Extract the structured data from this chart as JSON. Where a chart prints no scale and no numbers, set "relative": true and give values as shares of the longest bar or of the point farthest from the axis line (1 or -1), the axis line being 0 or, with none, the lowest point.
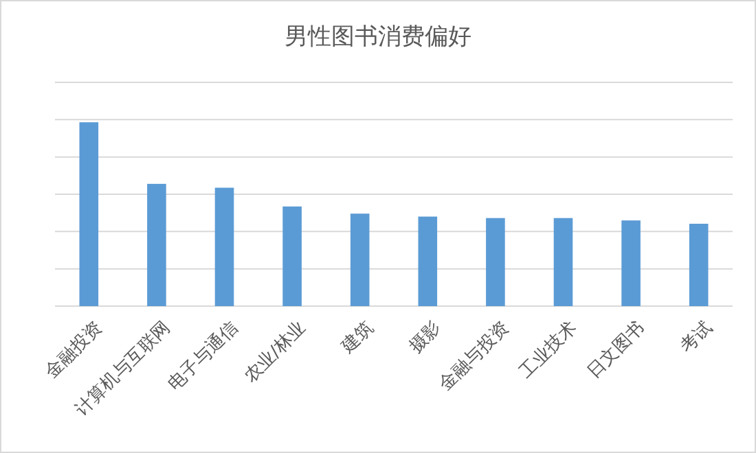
{
  "chart_data": {
    "type": "bar",
    "title": "男性图书消费偏好",
    "categories": [
      "金融投资",
      "计算机与互联网",
      "电子与通信",
      "农业/林业",
      "建筑",
      "摄影",
      "金融与投资",
      "工业技术",
      "日文图书",
      "考试"
    ],
    "values": [
      1,
      0.665,
      0.644,
      0.542,
      0.503,
      0.487,
      0.479,
      0.479,
      0.466,
      0.448
    ],
    "color": "#5b9bd5",
    "relative": true,
    "grid": "y"
  }
}
